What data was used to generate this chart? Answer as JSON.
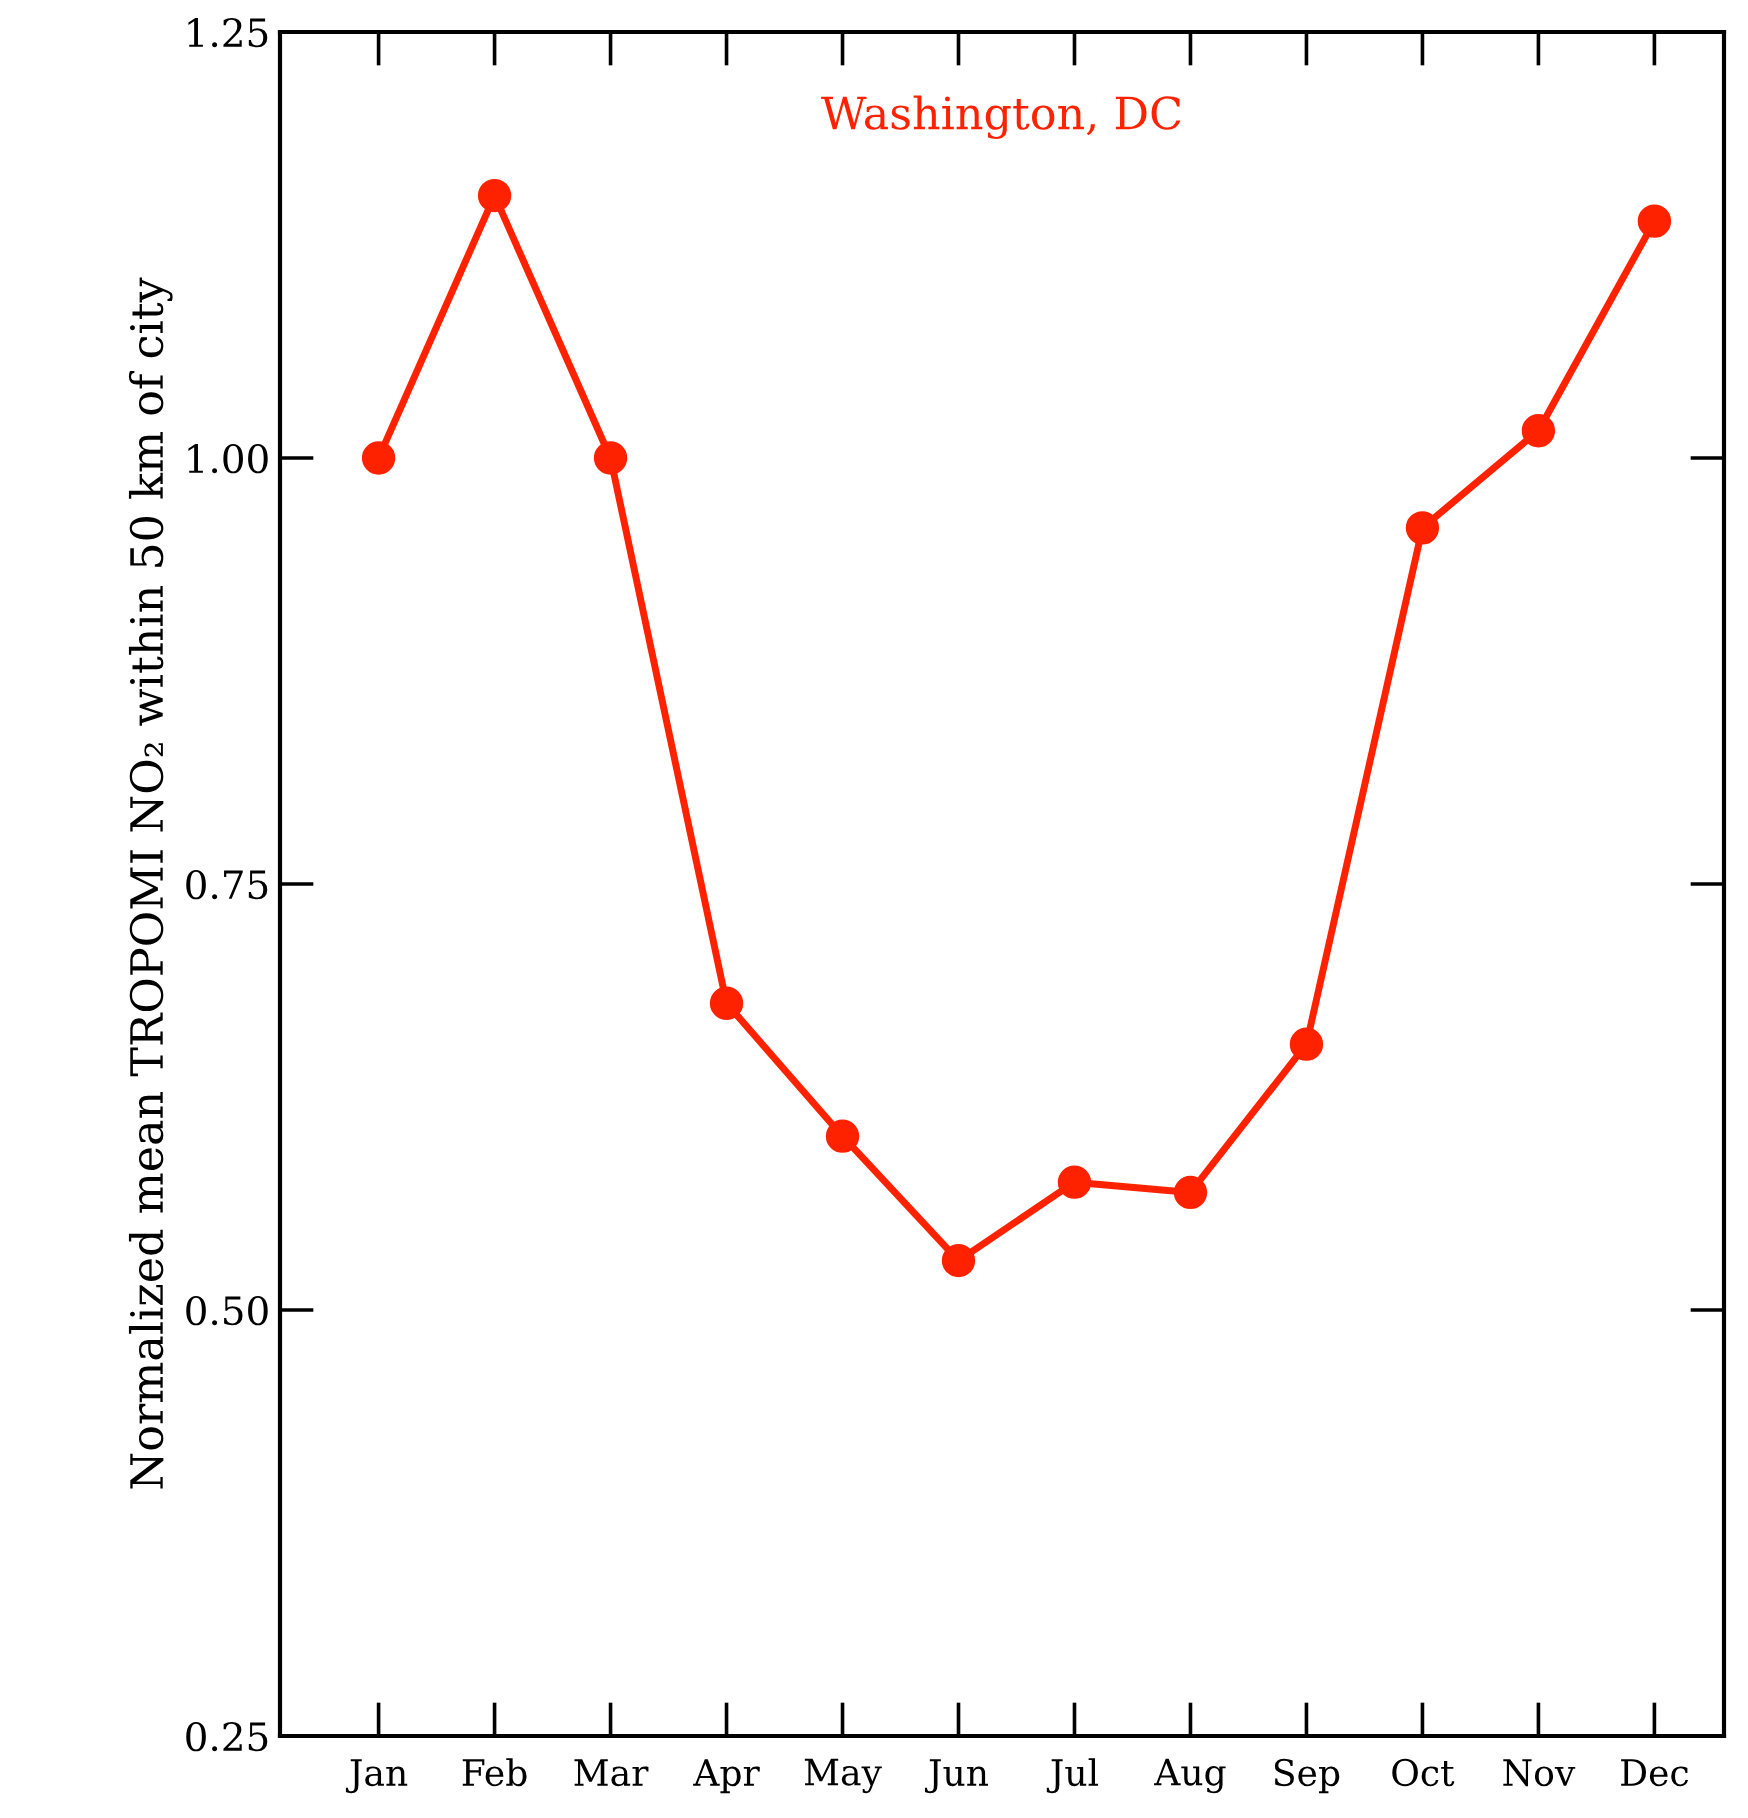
{
  "chart_data": {
    "type": "line",
    "ylabel": "Normalized mean TROPOMI NO₂ within 50 km of city",
    "categories": [
      "Jan",
      "Feb",
      "Mar",
      "Apr",
      "May",
      "Jun",
      "Jul",
      "Aug",
      "Sep",
      "Oct",
      "Nov",
      "Dec"
    ],
    "series": [
      {
        "name": "Washington, DC",
        "color": "#ff2200",
        "values": [
          1.0,
          1.154,
          1.0,
          0.68,
          0.602,
          0.529,
          0.575,
          0.569,
          0.656,
          0.959,
          1.016,
          1.139
        ]
      }
    ],
    "ylim": [
      0.25,
      1.25
    ],
    "yticks": [
      {
        "value": 0.25,
        "label": "0.25"
      },
      {
        "value": 0.5,
        "label": "0.50"
      },
      {
        "value": 0.75,
        "label": "0.75"
      },
      {
        "value": 1.0,
        "label": "1.00"
      },
      {
        "value": 1.25,
        "label": "1.25"
      }
    ],
    "marker": "circle",
    "line_style": "solid",
    "grid": false,
    "legend": "top"
  }
}
